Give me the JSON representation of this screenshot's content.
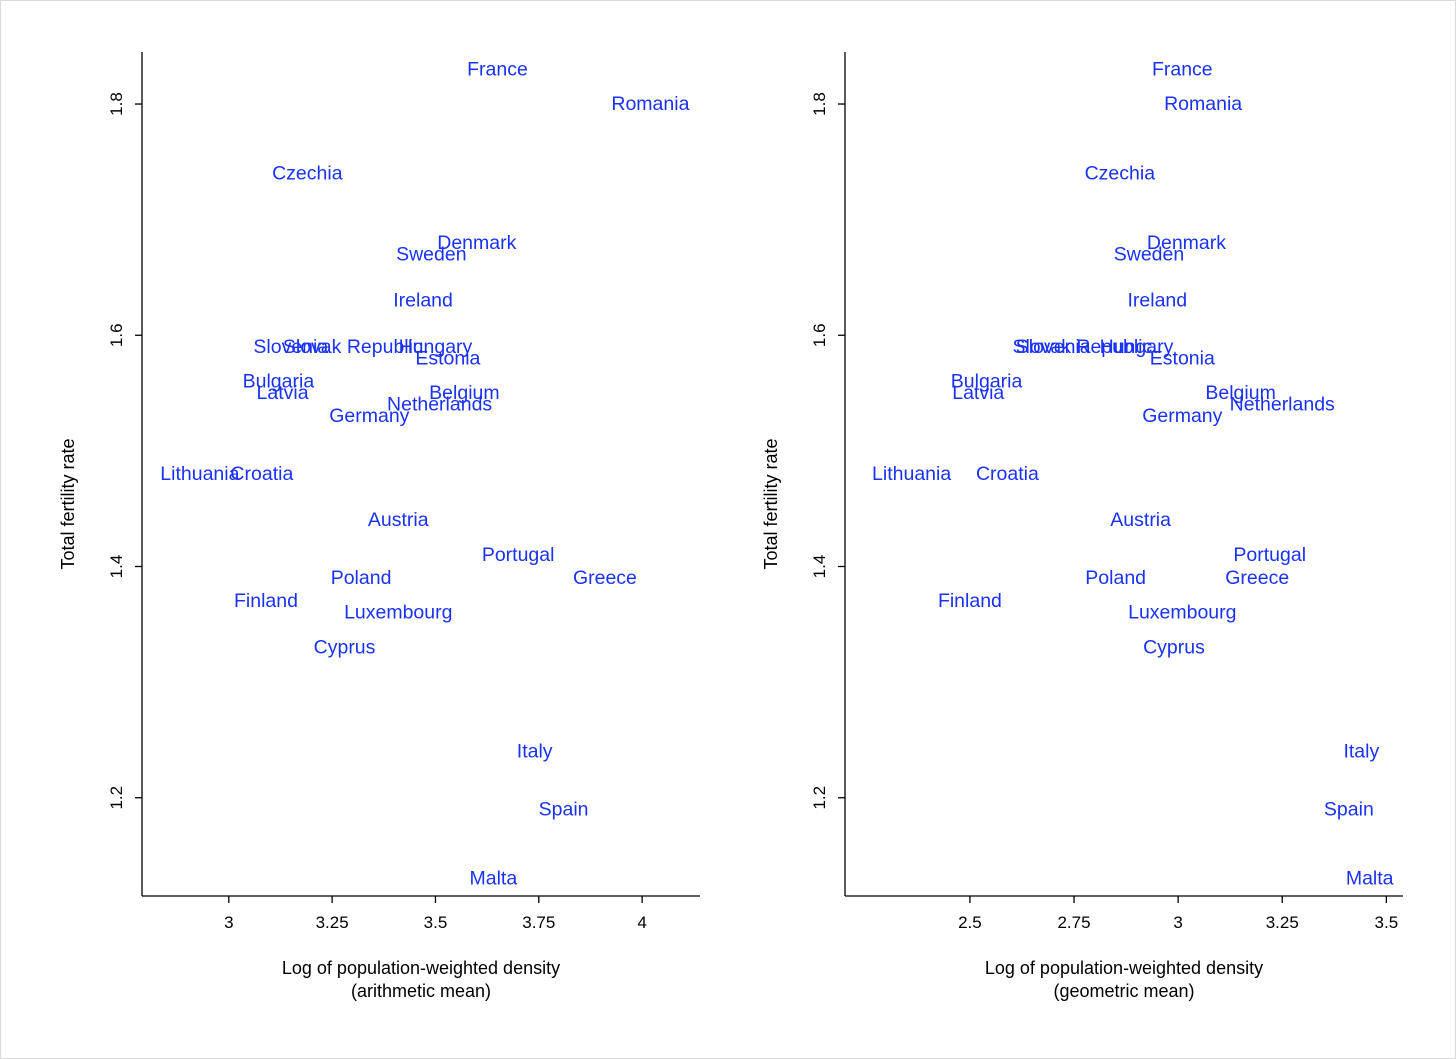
{
  "style": {
    "label_color": "#1a32f5",
    "axis_color": "#000000",
    "background": "#ffffff"
  },
  "chart_data": [
    {
      "type": "scatter",
      "marker": "country-name labels",
      "xlabel_line1": "Log of population-weighted density",
      "xlabel_line2": "(arithmetic mean)",
      "ylabel": "Total fertility rate",
      "xlim": [
        2.79,
        4.14
      ],
      "ylim": [
        1.115,
        1.845
      ],
      "xticks": [
        {
          "value": 3,
          "label": "3"
        },
        {
          "value": 3.25,
          "label": "3.25"
        },
        {
          "value": 3.5,
          "label": "3.5"
        },
        {
          "value": 3.75,
          "label": "3.75"
        },
        {
          "value": 4,
          "label": "4"
        }
      ],
      "yticks": [
        {
          "value": 1.2,
          "label": "1.2"
        },
        {
          "value": 1.4,
          "label": "1.4"
        },
        {
          "value": 1.6,
          "label": "1.6"
        },
        {
          "value": 1.8,
          "label": "1.8"
        }
      ],
      "points": [
        {
          "label": "France",
          "x": 3.65,
          "y": 1.83
        },
        {
          "label": "Romania",
          "x": 4.02,
          "y": 1.8
        },
        {
          "label": "Czechia",
          "x": 3.19,
          "y": 1.74
        },
        {
          "label": "Denmark",
          "x": 3.6,
          "y": 1.68
        },
        {
          "label": "Sweden",
          "x": 3.49,
          "y": 1.67
        },
        {
          "label": "Ireland",
          "x": 3.47,
          "y": 1.63
        },
        {
          "label": "Slovenia",
          "x": 3.15,
          "y": 1.59
        },
        {
          "label": "Slovak Republic",
          "x": 3.3,
          "y": 1.59
        },
        {
          "label": "Hungary",
          "x": 3.5,
          "y": 1.59
        },
        {
          "label": "Estonia",
          "x": 3.53,
          "y": 1.58
        },
        {
          "label": "Bulgaria",
          "x": 3.12,
          "y": 1.56
        },
        {
          "label": "Latvia",
          "x": 3.13,
          "y": 1.55
        },
        {
          "label": "Belgium",
          "x": 3.57,
          "y": 1.55
        },
        {
          "label": "Netherlands",
          "x": 3.51,
          "y": 1.54
        },
        {
          "label": "Germany",
          "x": 3.34,
          "y": 1.53
        },
        {
          "label": "Lithuania",
          "x": 2.93,
          "y": 1.48
        },
        {
          "label": "Croatia",
          "x": 3.08,
          "y": 1.48
        },
        {
          "label": "Austria",
          "x": 3.41,
          "y": 1.44
        },
        {
          "label": "Portugal",
          "x": 3.7,
          "y": 1.41
        },
        {
          "label": "Poland",
          "x": 3.32,
          "y": 1.39
        },
        {
          "label": "Greece",
          "x": 3.91,
          "y": 1.39
        },
        {
          "label": "Finland",
          "x": 3.09,
          "y": 1.37
        },
        {
          "label": "Luxembourg",
          "x": 3.41,
          "y": 1.36
        },
        {
          "label": "Cyprus",
          "x": 3.28,
          "y": 1.33
        },
        {
          "label": "Italy",
          "x": 3.74,
          "y": 1.24
        },
        {
          "label": "Spain",
          "x": 3.81,
          "y": 1.19
        },
        {
          "label": "Malta",
          "x": 3.64,
          "y": 1.13
        }
      ]
    },
    {
      "type": "scatter",
      "marker": "country-name labels",
      "xlabel_line1": "Log of population-weighted density",
      "xlabel_line2": "(geometric mean)",
      "ylabel": "Total fertility rate",
      "xlim": [
        2.2,
        3.54
      ],
      "ylim": [
        1.115,
        1.845
      ],
      "xticks": [
        {
          "value": 2.5,
          "label": "2.5"
        },
        {
          "value": 2.75,
          "label": "2.75"
        },
        {
          "value": 3,
          "label": "3"
        },
        {
          "value": 3.25,
          "label": "3.25"
        },
        {
          "value": 3.5,
          "label": "3.5"
        }
      ],
      "yticks": [
        {
          "value": 1.2,
          "label": "1.2"
        },
        {
          "value": 1.4,
          "label": "1.4"
        },
        {
          "value": 1.6,
          "label": "1.6"
        },
        {
          "value": 1.8,
          "label": "1.8"
        }
      ],
      "points": [
        {
          "label": "France",
          "x": 3.01,
          "y": 1.83
        },
        {
          "label": "Romania",
          "x": 3.06,
          "y": 1.8
        },
        {
          "label": "Czechia",
          "x": 2.86,
          "y": 1.74
        },
        {
          "label": "Denmark",
          "x": 3.02,
          "y": 1.68
        },
        {
          "label": "Sweden",
          "x": 2.93,
          "y": 1.67
        },
        {
          "label": "Ireland",
          "x": 2.95,
          "y": 1.63
        },
        {
          "label": "Slovenia",
          "x": 2.7,
          "y": 1.59
        },
        {
          "label": "Slovak Republic",
          "x": 2.77,
          "y": 1.59
        },
        {
          "label": "Hungary",
          "x": 2.9,
          "y": 1.59
        },
        {
          "label": "Estonia",
          "x": 3.01,
          "y": 1.58
        },
        {
          "label": "Bulgaria",
          "x": 2.54,
          "y": 1.56
        },
        {
          "label": "Latvia",
          "x": 2.52,
          "y": 1.55
        },
        {
          "label": "Belgium",
          "x": 3.15,
          "y": 1.55
        },
        {
          "label": "Netherlands",
          "x": 3.25,
          "y": 1.54
        },
        {
          "label": "Germany",
          "x": 3.01,
          "y": 1.53
        },
        {
          "label": "Lithuania",
          "x": 2.36,
          "y": 1.48
        },
        {
          "label": "Croatia",
          "x": 2.59,
          "y": 1.48
        },
        {
          "label": "Austria",
          "x": 2.91,
          "y": 1.44
        },
        {
          "label": "Portugal",
          "x": 3.22,
          "y": 1.41
        },
        {
          "label": "Poland",
          "x": 2.85,
          "y": 1.39
        },
        {
          "label": "Greece",
          "x": 3.19,
          "y": 1.39
        },
        {
          "label": "Finland",
          "x": 2.5,
          "y": 1.37
        },
        {
          "label": "Luxembourg",
          "x": 3.01,
          "y": 1.36
        },
        {
          "label": "Cyprus",
          "x": 2.99,
          "y": 1.33
        },
        {
          "label": "Italy",
          "x": 3.44,
          "y": 1.24
        },
        {
          "label": "Spain",
          "x": 3.41,
          "y": 1.19
        },
        {
          "label": "Malta",
          "x": 3.46,
          "y": 1.13
        }
      ]
    }
  ]
}
